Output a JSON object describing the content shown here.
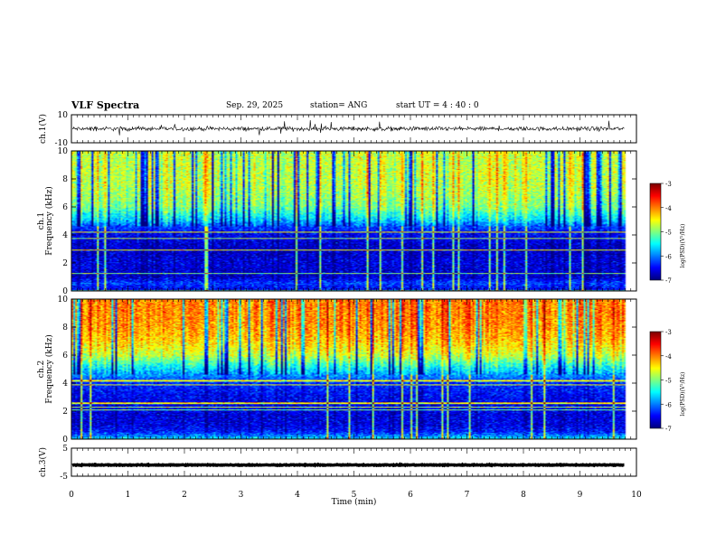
{
  "header": {
    "title": "VLF Spectra",
    "date": "Sep. 29, 2025",
    "station": "station= ANG",
    "start": "start  UT =   4 : 40 : 0"
  },
  "colors": {
    "spectrogram_low": "#00007a",
    "spectrogram_high": "#ff0000",
    "waveform": "#000000"
  },
  "chart_data": [
    {
      "type": "line",
      "panel": "ch1-waveform",
      "ylabel": "ch.1(V)",
      "ylim": [
        -10,
        10
      ],
      "yticks": [
        "10",
        "-10"
      ],
      "series": [
        {
          "level": 0,
          "noise_amplitude": 1.5,
          "spike_amplitude": 5
        }
      ]
    },
    {
      "type": "heatmap",
      "panel": "ch1-spectrogram",
      "ylabel": "ch.1\nFrequency (kHz)",
      "ylabel_line1": "ch.1",
      "ylabel_line2": "Frequency (kHz)",
      "ylim": [
        0,
        10
      ],
      "yticks": [
        "0",
        "2",
        "4",
        "6",
        "8",
        "10"
      ],
      "colorbar": {
        "label": "log(PSD)(V²/Hz)",
        "range": [
          -7,
          -3
        ],
        "ticks": [
          "-3",
          "-4",
          "-5",
          "-6",
          "-7"
        ]
      },
      "profile": [
        {
          "f": 0.0,
          "v": -6.6
        },
        {
          "f": 0.5,
          "v": -6.2
        },
        {
          "f": 1.0,
          "v": -6.7
        },
        {
          "f": 2.0,
          "v": -6.6
        },
        {
          "f": 3.0,
          "v": -6.7
        },
        {
          "f": 4.0,
          "v": -6.5
        },
        {
          "f": 4.6,
          "v": -6.2
        },
        {
          "f": 5.0,
          "v": -5.7
        },
        {
          "f": 6.0,
          "v": -5.0
        },
        {
          "f": 7.0,
          "v": -4.8
        },
        {
          "f": 8.0,
          "v": -4.7
        },
        {
          "f": 9.0,
          "v": -4.7
        },
        {
          "f": 10.0,
          "v": -4.7
        }
      ]
    },
    {
      "type": "heatmap",
      "panel": "ch2-spectrogram",
      "ylabel_line1": "ch.2",
      "ylabel_line2": "Frequency (kHz)",
      "ylim": [
        0,
        10
      ],
      "yticks": [
        "0",
        "2",
        "4",
        "6",
        "8",
        "10"
      ],
      "colorbar": {
        "label": "log(PSD)(V²/Hz)",
        "range": [
          -7,
          -3
        ],
        "ticks": [
          "-3",
          "-4",
          "-5",
          "-6",
          "-7"
        ]
      },
      "profile": [
        {
          "f": 0.0,
          "v": -5.6
        },
        {
          "f": 0.5,
          "v": -6.4
        },
        {
          "f": 1.0,
          "v": -6.6
        },
        {
          "f": 2.0,
          "v": -6.6
        },
        {
          "f": 3.0,
          "v": -6.5
        },
        {
          "f": 4.0,
          "v": -6.3
        },
        {
          "f": 5.0,
          "v": -5.6
        },
        {
          "f": 6.0,
          "v": -4.7
        },
        {
          "f": 7.0,
          "v": -4.3
        },
        {
          "f": 8.0,
          "v": -4.1
        },
        {
          "f": 9.0,
          "v": -4.0
        },
        {
          "f": 10.0,
          "v": -4.0
        }
      ]
    },
    {
      "type": "line",
      "panel": "ch3-waveform",
      "ylabel": "ch.3(V)",
      "ylim": [
        -5,
        5
      ],
      "yticks": [
        "5",
        "-5"
      ],
      "series": [
        {
          "level": -1,
          "noise_amplitude": 0.15
        }
      ]
    }
  ],
  "xaxis": {
    "xlabel": "Time  (min)",
    "xlim": [
      0,
      10
    ],
    "ticks": [
      "0",
      "1",
      "2",
      "3",
      "4",
      "5",
      "6",
      "7",
      "8",
      "9",
      "10"
    ],
    "data_end": 9.8
  }
}
